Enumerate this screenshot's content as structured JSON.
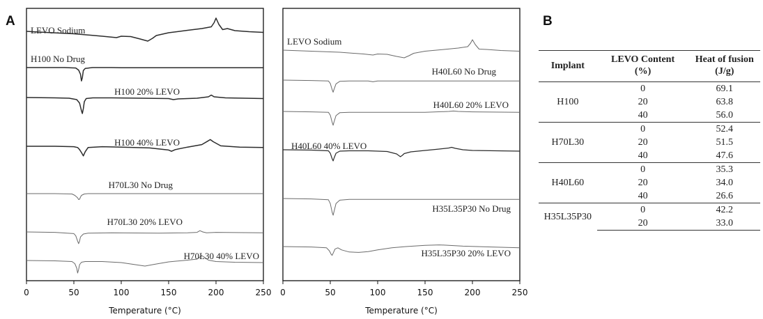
{
  "panels": {
    "A": "A",
    "B": "B"
  },
  "chart_data": [
    {
      "type": "line",
      "panel": "A-left",
      "xlabel": "Temperature (°C)",
      "ylabel": "",
      "xlim": [
        0,
        250
      ],
      "xticks": [
        0,
        50,
        100,
        150,
        200,
        250
      ],
      "yticks_shown": false,
      "series": [
        {
          "name": "LEVO Sodium",
          "x": [
            0,
            20,
            50,
            80,
            95,
            100,
            110,
            120,
            128,
            133,
            137,
            150,
            170,
            185,
            195,
            198,
            200,
            203,
            207,
            212,
            220,
            235,
            250
          ],
          "y": [
            0,
            -0.3,
            -0.7,
            -1.4,
            -1.8,
            -1.4,
            -1.5,
            -2.2,
            -2.8,
            -2.0,
            -1.2,
            -0.4,
            0.3,
            0.8,
            1.3,
            2.5,
            3.8,
            2.0,
            0.5,
            0.8,
            0.2,
            -0.1,
            -0.3
          ]
        },
        {
          "name": "H100 No Drug",
          "x": [
            0,
            40,
            52,
            55,
            57,
            58,
            59,
            60,
            62,
            70,
            90,
            100,
            150,
            200,
            250
          ],
          "y": [
            0,
            0,
            -0.1,
            -0.6,
            -1.6,
            -3.2,
            -2.4,
            -0.7,
            -0.2,
            0,
            0,
            -0.05,
            -0.05,
            -0.05,
            -0.05
          ]
        },
        {
          "name": "H100 20% LEVO",
          "x": [
            0,
            30,
            45,
            53,
            56,
            58,
            59,
            60,
            61,
            63,
            70,
            90,
            120,
            150,
            155,
            160,
            180,
            192,
            195,
            198,
            210,
            230,
            250
          ],
          "y": [
            0,
            -0.1,
            -0.2,
            -0.6,
            -1.6,
            -3.8,
            -4.6,
            -3.2,
            -1.2,
            -0.3,
            -0.1,
            -0.1,
            -0.2,
            -0.3,
            -0.6,
            -0.4,
            -0.2,
            0.2,
            0.7,
            0.2,
            -0.1,
            -0.2,
            -0.3
          ]
        },
        {
          "name": "H100 40% LEVO",
          "x": [
            0,
            30,
            50,
            54,
            56,
            58,
            60,
            62,
            65,
            80,
            100,
            130,
            150,
            153,
            157,
            170,
            185,
            191,
            194,
            197,
            205,
            225,
            250
          ],
          "y": [
            0,
            0,
            -0.1,
            -0.3,
            -0.8,
            -1.5,
            -2.3,
            -1.3,
            -0.3,
            -0.1,
            -0.2,
            -0.4,
            -0.9,
            -1.2,
            -0.8,
            -0.2,
            0.4,
            1.2,
            1.6,
            1.1,
            0.1,
            -0.2,
            -0.3
          ]
        },
        {
          "name": "H70L30 No Drug",
          "x": [
            0,
            30,
            48,
            51,
            54,
            55,
            56,
            57,
            58,
            61,
            65,
            80,
            110,
            160,
            200,
            250
          ],
          "y": [
            0,
            0,
            -0.1,
            -0.5,
            -1.2,
            -1.7,
            -1.6,
            -1.0,
            -0.5,
            -0.1,
            0,
            0,
            0,
            0,
            0,
            0
          ]
        },
        {
          "name": "H70L30 20% LEVO",
          "x": [
            0,
            30,
            50,
            52,
            54,
            55,
            56,
            57,
            60,
            65,
            90,
            140,
            170,
            180,
            183,
            186,
            190,
            200,
            250
          ],
          "y": [
            0,
            -0.1,
            -0.4,
            -0.9,
            -2.2,
            -2.8,
            -2.2,
            -1.2,
            -0.5,
            -0.3,
            -0.2,
            -0.3,
            -0.2,
            -0.1,
            0.3,
            0.0,
            -0.2,
            -0.1,
            -0.2
          ]
        },
        {
          "name": "H70L30 40% LEVO",
          "x": [
            0,
            30,
            48,
            51,
            53,
            54,
            55,
            56,
            58,
            62,
            80,
            100,
            115,
            125,
            135,
            150,
            170,
            180,
            183,
            185,
            188,
            192,
            200,
            220,
            250
          ],
          "y": [
            0,
            -0.1,
            -0.3,
            -0.9,
            -2.2,
            -3.6,
            -2.6,
            -1.2,
            -0.5,
            -0.3,
            -0.3,
            -0.6,
            -1.2,
            -1.6,
            -1.1,
            -0.4,
            0.1,
            0.4,
            1.0,
            1.4,
            0.9,
            0.1,
            -0.3,
            -0.5,
            -0.6
          ]
        }
      ]
    },
    {
      "type": "line",
      "panel": "A-right",
      "xlabel": "Temperature (°C)",
      "ylabel": "",
      "xlim": [
        0,
        250
      ],
      "xticks": [
        0,
        50,
        100,
        150,
        200,
        250
      ],
      "yticks_shown": false,
      "series": [
        {
          "name": "LEVO Sodium",
          "x": [
            0,
            30,
            60,
            85,
            95,
            100,
            110,
            120,
            128,
            133,
            138,
            150,
            170,
            185,
            195,
            198,
            200,
            203,
            207,
            215,
            230,
            250
          ],
          "y": [
            0,
            -0.3,
            -0.6,
            -1.1,
            -1.4,
            -1.1,
            -1.2,
            -1.8,
            -2.2,
            -1.6,
            -0.9,
            -0.3,
            0.2,
            0.6,
            1.0,
            2.0,
            3.0,
            1.6,
            0.3,
            0.2,
            -0.1,
            -0.3
          ]
        },
        {
          "name": "H40L60 No Drug",
          "x": [
            0,
            30,
            48,
            50,
            52,
            53,
            54,
            56,
            60,
            70,
            90,
            95,
            100,
            150,
            200,
            250
          ],
          "y": [
            0,
            -0.1,
            -0.2,
            -0.8,
            -2.3,
            -2.9,
            -2.2,
            -0.9,
            -0.3,
            -0.2,
            -0.2,
            -0.4,
            -0.2,
            -0.2,
            -0.2,
            -0.2
          ]
        },
        {
          "name": "H40L60 20% LEVO",
          "x": [
            0,
            30,
            48,
            50,
            52,
            53,
            54,
            56,
            60,
            70,
            100,
            150,
            175,
            180,
            185,
            200,
            250
          ],
          "y": [
            0,
            -0.1,
            -0.2,
            -0.9,
            -2.6,
            -3.3,
            -2.5,
            -1.0,
            -0.3,
            -0.2,
            -0.2,
            -0.2,
            0.0,
            0.1,
            0.0,
            -0.1,
            -0.2
          ]
        },
        {
          "name": "H40L60 40% LEVO",
          "x": [
            0,
            30,
            48,
            50,
            52,
            53,
            54,
            56,
            60,
            70,
            90,
            110,
            120,
            124,
            126,
            128,
            135,
            150,
            165,
            175,
            178,
            182,
            190,
            200,
            225,
            250
          ],
          "y": [
            0,
            -0.1,
            -0.3,
            -1.0,
            -2.6,
            -3.2,
            -2.4,
            -1.0,
            -0.4,
            -0.3,
            -0.3,
            -0.5,
            -1.2,
            -2.0,
            -1.6,
            -1.1,
            -0.6,
            -0.2,
            0.2,
            0.5,
            0.7,
            0.4,
            0.0,
            -0.2,
            -0.3,
            -0.4
          ]
        },
        {
          "name": "H35L35P30 No Drug",
          "x": [
            0,
            30,
            48,
            50,
            52,
            53,
            54,
            56,
            60,
            70,
            100,
            150,
            200,
            250
          ],
          "y": [
            0,
            -0.1,
            -0.3,
            -1.2,
            -3.3,
            -4.0,
            -3.1,
            -1.2,
            -0.4,
            -0.2,
            -0.2,
            -0.2,
            -0.2,
            -0.2
          ]
        },
        {
          "name": "H35L35P30 20% LEVO",
          "x": [
            0,
            30,
            46,
            49,
            51,
            52,
            53,
            55,
            58,
            62,
            70,
            80,
            90,
            100,
            115,
            130,
            150,
            165,
            175,
            190,
            205,
            220,
            250
          ],
          "y": [
            0,
            -0.1,
            -0.3,
            -1.0,
            -1.9,
            -2.1,
            -1.6,
            -0.6,
            -0.3,
            -0.8,
            -1.3,
            -1.4,
            -1.2,
            -0.8,
            -0.3,
            0.0,
            0.3,
            0.4,
            0.3,
            0.1,
            0.0,
            -0.1,
            -0.3
          ]
        }
      ]
    },
    {
      "type": "table",
      "panel": "B",
      "columns": [
        "Implant",
        "LEVO Content (%)",
        "Heat of fusion (J/g)"
      ],
      "rows": [
        [
          "H100",
          "0",
          "69.1"
        ],
        [
          "H100",
          "20",
          "63.8"
        ],
        [
          "H100",
          "40",
          "56.0"
        ],
        [
          "H70L30",
          "0",
          "52.4"
        ],
        [
          "H70L30",
          "20",
          "51.5"
        ],
        [
          "H70L30",
          "40",
          "47.6"
        ],
        [
          "H40L60",
          "0",
          "35.3"
        ],
        [
          "H40L60",
          "20",
          "34.0"
        ],
        [
          "H40L60",
          "40",
          "26.6"
        ],
        [
          "H35L35P30",
          "0",
          "42.2"
        ],
        [
          "H35L35P30",
          "20",
          "33.0"
        ]
      ]
    }
  ],
  "table": {
    "headers": {
      "implant": "Implant",
      "content_l1": "LEVO Content",
      "content_l2": "(%)",
      "heat_l1": "Heat of fusion",
      "heat_l2": "(J/g)"
    },
    "groups": [
      {
        "implant": "H100",
        "rows": [
          {
            "content": "0",
            "heat": "69.1"
          },
          {
            "content": "20",
            "heat": "63.8"
          },
          {
            "content": "40",
            "heat": "56.0"
          }
        ]
      },
      {
        "implant": "H70L30",
        "rows": [
          {
            "content": "0",
            "heat": "52.4"
          },
          {
            "content": "20",
            "heat": "51.5"
          },
          {
            "content": "40",
            "heat": "47.6"
          }
        ]
      },
      {
        "implant": "H40L60",
        "rows": [
          {
            "content": "0",
            "heat": "35.3"
          },
          {
            "content": "20",
            "heat": "34.0"
          },
          {
            "content": "40",
            "heat": "26.6"
          }
        ]
      },
      {
        "implant": "H35L35P30",
        "rows": [
          {
            "content": "0",
            "heat": "42.2"
          },
          {
            "content": "20",
            "heat": "33.0"
          }
        ]
      }
    ]
  },
  "colors": {
    "trace_dark": "#2b2b2b",
    "trace_light": "#6a6a6a",
    "axis": "#111111"
  }
}
